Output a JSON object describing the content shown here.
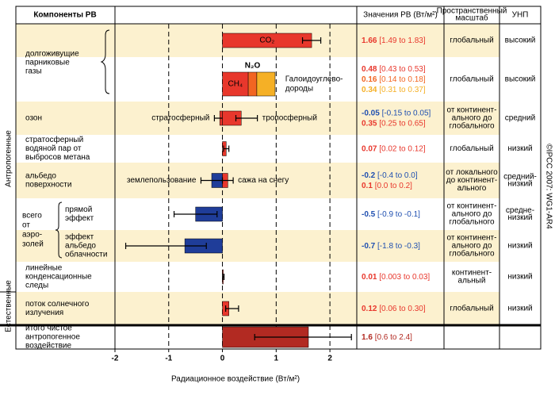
{
  "header": {
    "components": "Компоненты РВ",
    "values": "Значения РВ (Вт/м²)",
    "scale": [
      "Пространственный",
      "масштаб"
    ],
    "losu": "УНП"
  },
  "groups": [
    "Антропогенные",
    "Естественные"
  ],
  "copyright": "©IPCC 2007: WG1-AR4",
  "chart_data": {
    "type": "range-bar",
    "xlabel": "Радиационное воздействие (Вт/м²)",
    "xlim": [
      -2,
      2.5
    ],
    "xticks": [
      -2,
      -1,
      0,
      1,
      2
    ],
    "grid": true,
    "negative_text_color": "#1f4fb0",
    "aerosol_label": [
      "всего",
      "от",
      "аэро-",
      "золей"
    ],
    "rows": [
      {
        "label": [
          "долгоживущие",
          "парниковые",
          "газы"
        ],
        "scale": [
          "глобальный"
        ],
        "losu": [
          "высокий"
        ],
        "bars": [
          {
            "name": "CO₂",
            "name_pos": "inside",
            "value": 1.66,
            "low": 1.49,
            "high": 1.83,
            "range_label": "[1.49 to 1.83]",
            "color": "#e8372c"
          }
        ]
      },
      {
        "stacked": true,
        "scale": [
          "глобальный"
        ],
        "losu": [
          "высокий"
        ],
        "bars": [
          {
            "name": "CH₄",
            "name_pos": "inside",
            "value": 0.48,
            "low": 0.43,
            "high": 0.53,
            "range_label": "[0.43 to 0.53]",
            "color": "#e8372c"
          },
          {
            "name": "N₂O",
            "name_pos": "above",
            "value": 0.16,
            "low": 0.14,
            "high": 0.18,
            "range_label": "[0.14 to 0.18]",
            "color": "#f26522"
          },
          {
            "name": [
              "Галоидоуглево-",
              "дороды"
            ],
            "name_pos": "right",
            "value": 0.34,
            "low": 0.31,
            "high": 0.37,
            "range_label": "[0.31 to 0.37]",
            "color": "#f5b026"
          }
        ]
      },
      {
        "label": [
          "озон"
        ],
        "scale": [
          "от континент-",
          "ального до",
          "глобального"
        ],
        "losu": [
          "средний"
        ],
        "bars": [
          {
            "name": "стратосферный",
            "name_pos": "left",
            "value": -0.05,
            "low": -0.15,
            "high": 0.05,
            "range_label": "[-0.15 to 0.05]",
            "color": "#e8372c"
          },
          {
            "name": "тропосферный",
            "name_pos": "right",
            "value": 0.35,
            "low": 0.25,
            "high": 0.65,
            "range_label": "[0.25 to 0.65]",
            "color": "#e8372c"
          }
        ]
      },
      {
        "label": [
          "стратосферный",
          "водяной пар от",
          "выбросов метана"
        ],
        "scale": [
          "глобальный"
        ],
        "losu": [
          "низкий"
        ],
        "bars": [
          {
            "value": 0.07,
            "low": 0.02,
            "high": 0.12,
            "range_label": "[0.02 to 0.12]",
            "color": "#e8372c"
          }
        ]
      },
      {
        "label": [
          "альбедо",
          "поверхности"
        ],
        "scale": [
          "от локального",
          "до континент-",
          "ального"
        ],
        "losu": [
          "средний-",
          "низкий"
        ],
        "bars": [
          {
            "name": "землепользование",
            "name_pos": "left",
            "value": -0.2,
            "low": -0.4,
            "high": 0,
            "range_label": "[-0.4 to 0.0]",
            "color": "#1f3d99"
          },
          {
            "name": "сажа на снегу",
            "name_pos": "right",
            "value": 0.1,
            "low": 0,
            "high": 0.2,
            "range_label": "[0.0 to 0.2]",
            "color": "#e8372c"
          }
        ]
      },
      {
        "label": [
          "прямой",
          "эффект"
        ],
        "scale": [
          "от континент-",
          "ального до",
          "глобального"
        ],
        "losu": [
          "средне-",
          "низкий"
        ],
        "bars": [
          {
            "value": -0.5,
            "low": -0.9,
            "high": -0.1,
            "range_label": "[-0.9 to -0.1]",
            "color": "#1f3d99"
          }
        ]
      },
      {
        "label": [
          "эффект",
          "альбедо",
          "облачности"
        ],
        "scale": [
          "от континент-",
          "ального до",
          "глобального"
        ],
        "losu": [
          "низкий"
        ],
        "bars": [
          {
            "value": -0.7,
            "low": -1.8,
            "high": -0.3,
            "range_label": "[-1.8 to -0.3]",
            "color": "#1f3d99"
          }
        ]
      },
      {
        "label": [
          "линейные",
          "конденсационные",
          "следы"
        ],
        "scale": [
          "континент-",
          "альный"
        ],
        "losu": [
          "низкий"
        ],
        "bars": [
          {
            "value": 0.01,
            "low": 0.003,
            "high": 0.03,
            "range_label": "[0.003 to 0.03]",
            "color": "#e8372c"
          }
        ]
      },
      {
        "label": [
          "поток солнечного",
          "излучения"
        ],
        "scale": [
          "глобальный"
        ],
        "losu": [
          "низкий"
        ],
        "bars": [
          {
            "value": 0.12,
            "low": 0.06,
            "high": 0.3,
            "range_label": "[0.06 to 0.30]",
            "color": "#e8372c"
          }
        ]
      },
      {
        "label": [
          "итого чистое",
          "антропогенное",
          "воздействие"
        ],
        "bars": [
          {
            "value": 1.6,
            "low": 0.6,
            "high": 2.4,
            "range_label": "[0.6 to 2.4]",
            "color": "#b22a22"
          }
        ]
      }
    ]
  }
}
